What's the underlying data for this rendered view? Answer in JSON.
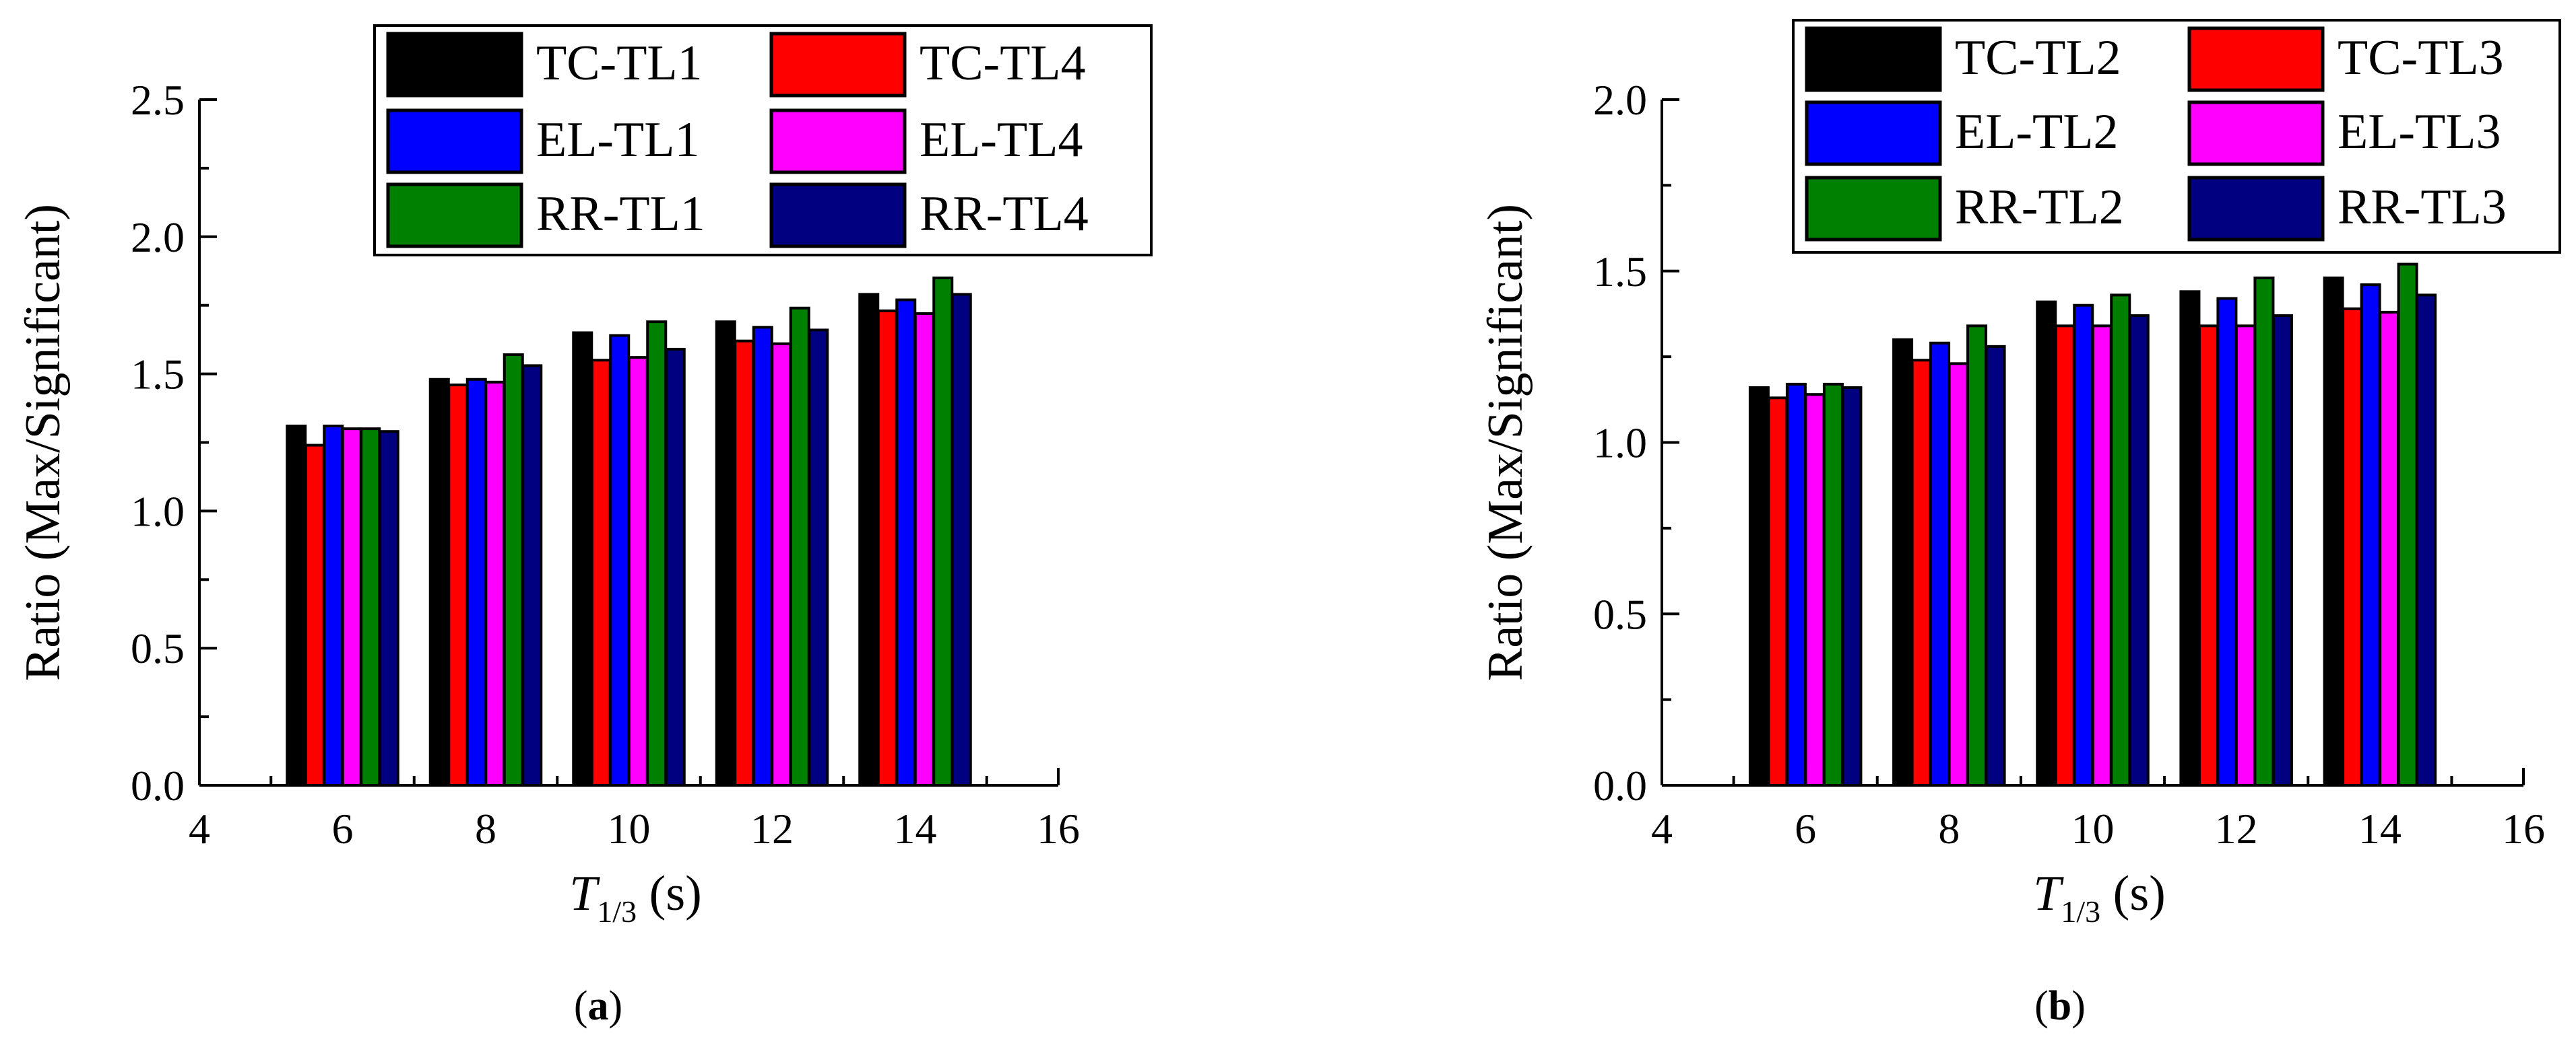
{
  "chart_data": [
    {
      "type": "bar",
      "panel_label": "(a)",
      "panel_letter": "a",
      "xlabel": {
        "symbol": "T",
        "subscript": "1/3",
        "unit": " (s)"
      },
      "ylabel": "Ratio (Max/Significant)",
      "xlim": [
        4,
        16
      ],
      "ylim": [
        0,
        2.5
      ],
      "xticks": [
        4,
        6,
        8,
        10,
        12,
        14,
        16
      ],
      "yticks": [
        "0.0",
        "0.5",
        "1.0",
        "1.5",
        "2.0",
        "2.5"
      ],
      "x": [
        6,
        8,
        10,
        12,
        14
      ],
      "legend_position": "top-right",
      "series": [
        {
          "name": "TC-TL1",
          "color": "#000000",
          "values": [
            1.31,
            1.48,
            1.65,
            1.69,
            1.79
          ]
        },
        {
          "name": "TC-TL4",
          "color": "#ff0000",
          "values": [
            1.24,
            1.46,
            1.55,
            1.62,
            1.73
          ]
        },
        {
          "name": "EL-TL1",
          "color": "#0000ff",
          "values": [
            1.31,
            1.48,
            1.64,
            1.67,
            1.77
          ]
        },
        {
          "name": "EL-TL4",
          "color": "#ff00ff",
          "values": [
            1.3,
            1.47,
            1.56,
            1.61,
            1.72
          ]
        },
        {
          "name": "RR-TL1",
          "color": "#008000",
          "values": [
            1.3,
            1.57,
            1.69,
            1.74,
            1.85
          ]
        },
        {
          "name": "RR-TL4",
          "color": "#000080",
          "values": [
            1.29,
            1.53,
            1.59,
            1.66,
            1.79
          ]
        }
      ]
    },
    {
      "type": "bar",
      "panel_label": "(b)",
      "panel_letter": "b",
      "xlabel": {
        "symbol": "T",
        "subscript": "1/3",
        "unit": " (s)"
      },
      "ylabel": "Ratio (Max/Significant)",
      "xlim": [
        4,
        16
      ],
      "ylim": [
        0,
        2.0
      ],
      "xticks": [
        4,
        6,
        8,
        10,
        12,
        14,
        16
      ],
      "yticks": [
        "0.0",
        "0.5",
        "1.0",
        "1.5",
        "2.0"
      ],
      "x": [
        6,
        8,
        10,
        12,
        14
      ],
      "legend_position": "top-right",
      "series": [
        {
          "name": "TC-TL2",
          "color": "#000000",
          "values": [
            1.16,
            1.3,
            1.41,
            1.44,
            1.48
          ]
        },
        {
          "name": "TC-TL3",
          "color": "#ff0000",
          "values": [
            1.13,
            1.24,
            1.34,
            1.34,
            1.39
          ]
        },
        {
          "name": "EL-TL2",
          "color": "#0000ff",
          "values": [
            1.17,
            1.29,
            1.4,
            1.42,
            1.46
          ]
        },
        {
          "name": "EL-TL3",
          "color": "#ff00ff",
          "values": [
            1.14,
            1.23,
            1.34,
            1.34,
            1.38
          ]
        },
        {
          "name": "RR-TL2",
          "color": "#008000",
          "values": [
            1.17,
            1.34,
            1.43,
            1.48,
            1.52
          ]
        },
        {
          "name": "RR-TL3",
          "color": "#000080",
          "values": [
            1.16,
            1.28,
            1.37,
            1.37,
            1.43
          ]
        }
      ]
    }
  ]
}
